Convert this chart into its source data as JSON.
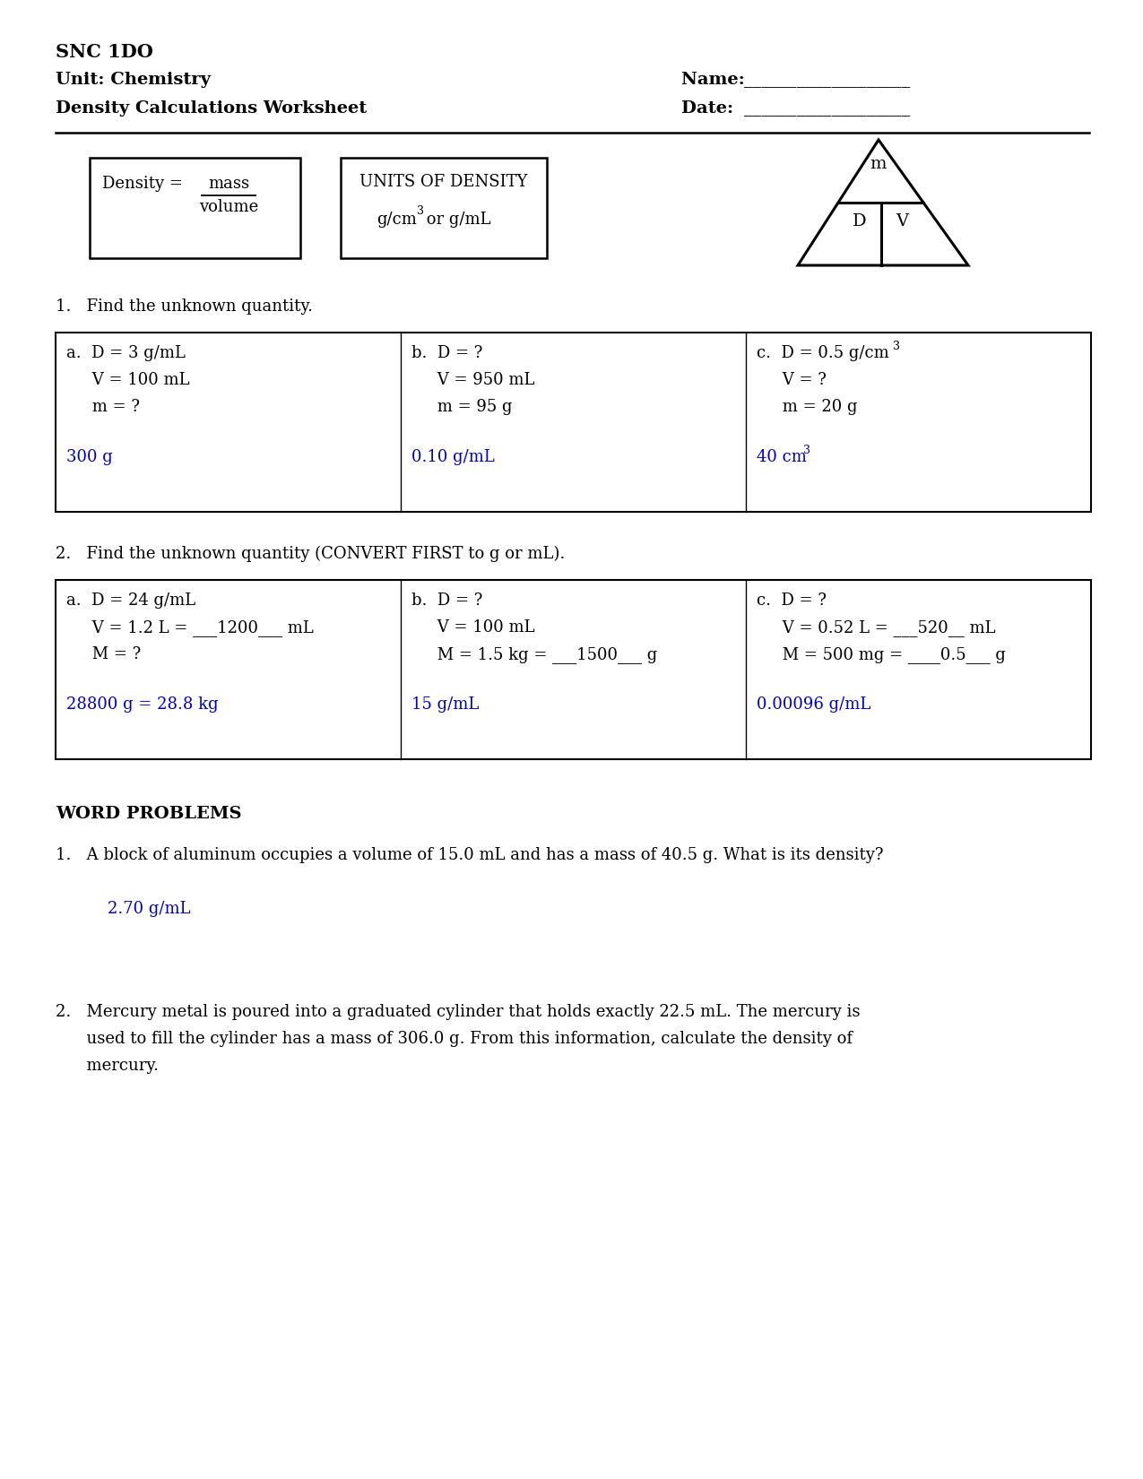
{
  "title_line1": "SNC 1DO",
  "title_line2": "Unit: Chemistry",
  "title_line3": "Density Calculations Worksheet",
  "name_label": "Name: ",
  "name_underline": "___________________",
  "date_label": "Date:  ",
  "date_underline": "___________________",
  "units_line1": "UNITS OF DENSITY",
  "units_line2_pre": "g/cm",
  "units_line2_post": " or g/mL",
  "triangle_m": "m",
  "triangle_d": "D",
  "triangle_v": "V",
  "q1_title": "1.   Find the unknown quantity.",
  "q1a_lines": [
    "a.  D = 3 g/mL",
    "     V = 100 mL",
    "     m = ?"
  ],
  "q1a_answer": "300 g",
  "q1b_lines": [
    "b.  D = ?",
    "     V = 950 mL",
    "     m = 95 g"
  ],
  "q1b_answer": "0.10 g/mL",
  "q2_title": "2.   Find the unknown quantity (CONVERT FIRST to g or mL).",
  "q2a_lines": [
    "a.  D = 24 g/mL",
    "     V = 1.2 L = ___1200___ mL",
    "     M = ?"
  ],
  "q2a_answer": "28800 g = 28.8 kg",
  "q2b_lines": [
    "b.  D = ?",
    "     V = 100 mL",
    "     M = 1.5 kg = ___1500___ g"
  ],
  "q2b_answer": "15 g/mL",
  "q2c_lines": [
    "c.  D = ?",
    "     V = 0.52 L = ___520__ mL",
    "     M = 500 mg = ____0.5___ g"
  ],
  "q2c_answer": "0.00096 g/mL",
  "word_problems_title": "WORD PROBLEMS",
  "wp1_text": "1.   A block of aluminum occupies a volume of 15.0 mL and has a mass of 40.5 g. What is its density?",
  "wp1_answer": "2.70 g/mL",
  "wp2_line1": "2.   Mercury metal is poured into a graduated cylinder that holds exactly 22.5 mL. The mercury is",
  "wp2_line2": "      used to fill the cylinder has a mass of 306.0 g. From this information, calculate the density of",
  "wp2_line3": "      mercury.",
  "answer_color": "#0000CC",
  "bg_color": "#FFFFFF",
  "text_color": "#000000"
}
